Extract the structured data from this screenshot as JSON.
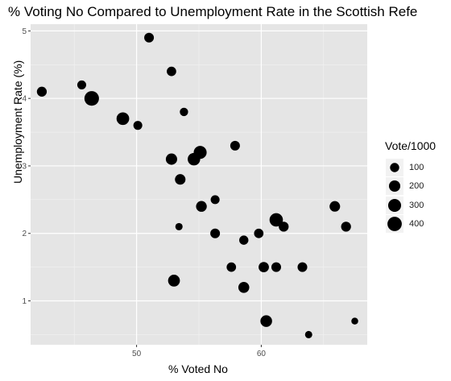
{
  "chart_data": {
    "type": "scatter",
    "title": "% Voting No Compared to Unemployment Rate in the Scottish Refe",
    "xlabel": "% Voted No",
    "ylabel": "Unemployment Rate (%)",
    "xlim": [
      41.5,
      68.5
    ],
    "ylim": [
      0.35,
      5.1
    ],
    "x_ticks": [
      50,
      60
    ],
    "y_ticks": [
      1,
      2,
      3,
      4,
      5
    ],
    "grid": true,
    "background": "#e5e5e5",
    "point_color": "#000000",
    "size_legend": {
      "title": "Vote/1000",
      "entries": [
        100,
        200,
        300,
        400
      ]
    },
    "points": [
      {
        "x": 42.4,
        "y": 4.1,
        "size": 130
      },
      {
        "x": 45.6,
        "y": 4.2,
        "size": 90
      },
      {
        "x": 46.4,
        "y": 4.0,
        "size": 420
      },
      {
        "x": 48.9,
        "y": 3.7,
        "size": 280
      },
      {
        "x": 50.1,
        "y": 3.6,
        "size": 90
      },
      {
        "x": 51.0,
        "y": 4.9,
        "size": 120
      },
      {
        "x": 52.8,
        "y": 4.4,
        "size": 110
      },
      {
        "x": 52.8,
        "y": 3.1,
        "size": 200
      },
      {
        "x": 53.0,
        "y": 1.3,
        "size": 230
      },
      {
        "x": 53.4,
        "y": 2.1,
        "size": 40
      },
      {
        "x": 53.5,
        "y": 2.8,
        "size": 160
      },
      {
        "x": 53.8,
        "y": 3.8,
        "size": 70
      },
      {
        "x": 54.6,
        "y": 3.1,
        "size": 270
      },
      {
        "x": 55.1,
        "y": 3.2,
        "size": 300
      },
      {
        "x": 55.2,
        "y": 2.4,
        "size": 170
      },
      {
        "x": 56.3,
        "y": 2.5,
        "size": 90
      },
      {
        "x": 56.3,
        "y": 2.0,
        "size": 120
      },
      {
        "x": 57.6,
        "y": 1.5,
        "size": 110
      },
      {
        "x": 57.9,
        "y": 3.3,
        "size": 120
      },
      {
        "x": 58.6,
        "y": 1.9,
        "size": 100
      },
      {
        "x": 58.6,
        "y": 1.2,
        "size": 180
      },
      {
        "x": 59.8,
        "y": 2.0,
        "size": 110
      },
      {
        "x": 60.2,
        "y": 1.5,
        "size": 150
      },
      {
        "x": 60.4,
        "y": 0.7,
        "size": 220
      },
      {
        "x": 61.2,
        "y": 2.2,
        "size": 330
      },
      {
        "x": 61.2,
        "y": 1.5,
        "size": 120
      },
      {
        "x": 61.8,
        "y": 2.1,
        "size": 130
      },
      {
        "x": 63.3,
        "y": 1.5,
        "size": 120
      },
      {
        "x": 63.8,
        "y": 0.5,
        "size": 40
      },
      {
        "x": 65.9,
        "y": 2.4,
        "size": 160
      },
      {
        "x": 66.8,
        "y": 2.1,
        "size": 130
      },
      {
        "x": 67.5,
        "y": 0.7,
        "size": 30
      }
    ]
  }
}
